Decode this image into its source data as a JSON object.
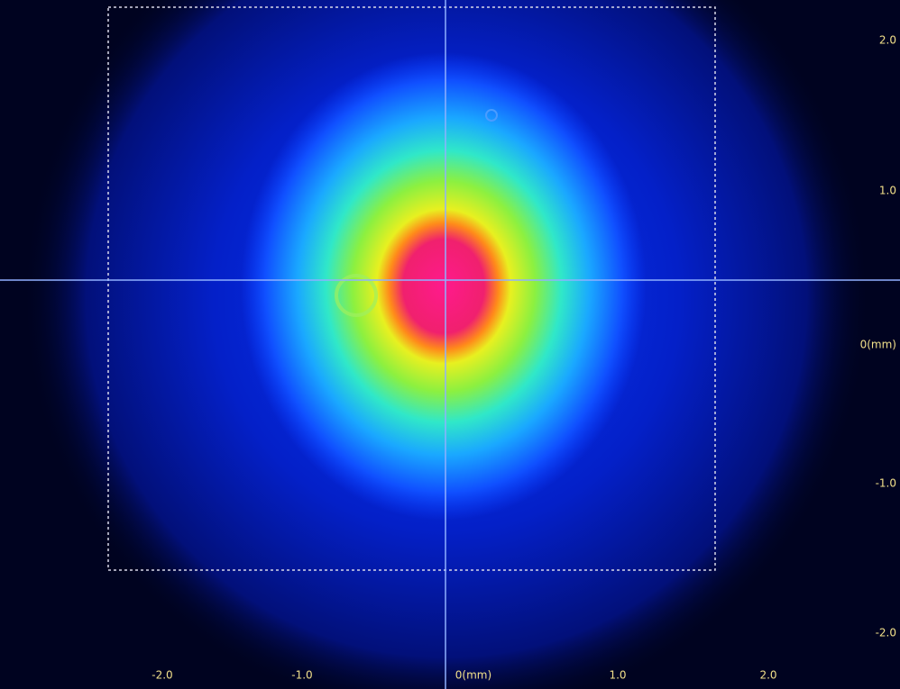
{
  "x_axis": {
    "labels": [
      "-2.0",
      "-1.0",
      "0(mm)",
      "1.0",
      "2.0"
    ]
  },
  "y_axis": {
    "labels": [
      "2.0",
      "1.0",
      "0(mm)",
      "-1.0",
      "-2.0"
    ]
  }
}
